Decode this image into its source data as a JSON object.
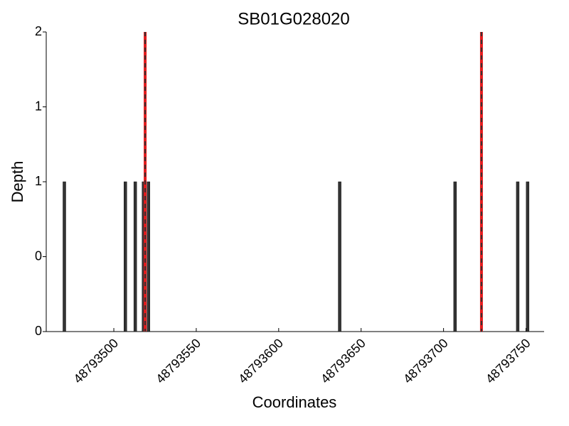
{
  "chart_data": {
    "type": "bar",
    "title": "SB01G028020",
    "x_label": "Coordinates",
    "y_label": "Depth",
    "x": [
      48793470,
      48793507,
      48793513,
      48793518,
      48793521,
      48793637,
      48793707,
      48793745,
      48793751
    ],
    "values": [
      1,
      1,
      1,
      1,
      1,
      1,
      1,
      1,
      1
    ],
    "color": "#333333",
    "vlines": [
      48793519,
      48793723
    ],
    "vline_color": "#e41a1c",
    "xlim": [
      48793459,
      48793761
    ],
    "xticks": [
      48793500,
      48793550,
      48793600,
      48793650,
      48793700,
      48793750
    ],
    "ylim": [
      0,
      2
    ],
    "yticks": [
      0,
      {
        "value": 0.5,
        "label": "0"
      },
      1,
      {
        "value": 1.5,
        "label": "1"
      },
      2
    ]
  }
}
